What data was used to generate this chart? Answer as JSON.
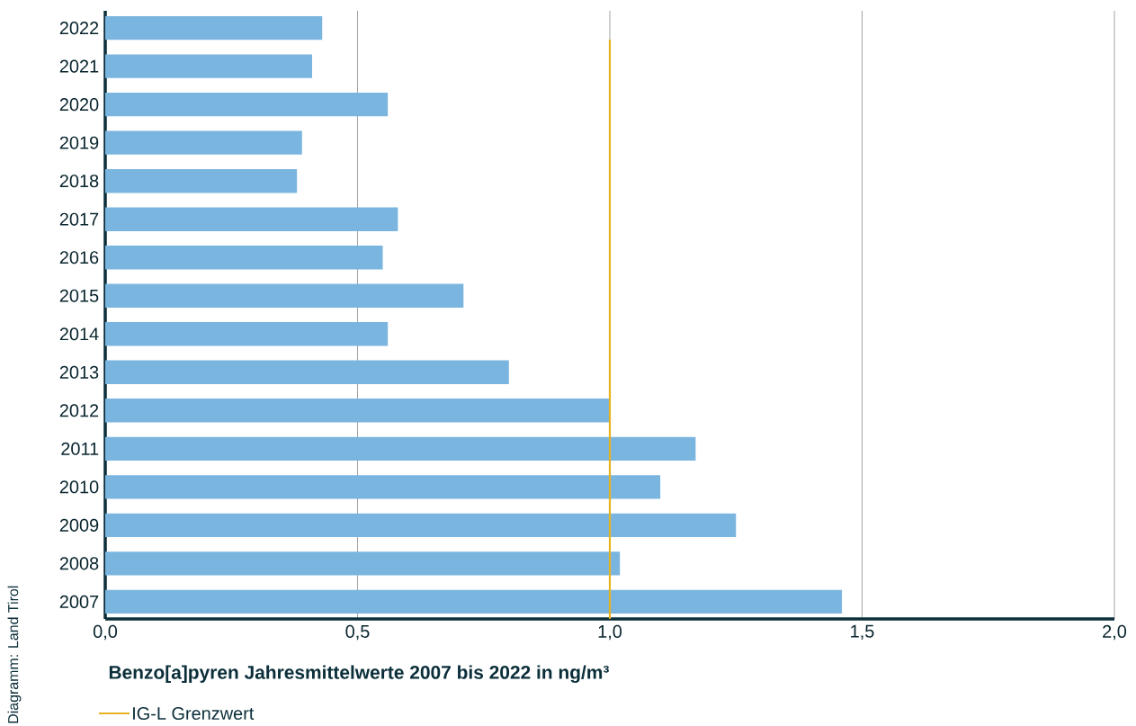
{
  "chart_data": {
    "type": "bar",
    "orientation": "horizontal",
    "xlabel": "Benzo[a]pyren Jahresmittelwerte 2007 bis 2022 in ng/m³",
    "categories": [
      "2022",
      "2021",
      "2020",
      "2019",
      "2018",
      "2017",
      "2016",
      "2015",
      "2014",
      "2013",
      "2012",
      "2011",
      "2010",
      "2009",
      "2008",
      "2007"
    ],
    "values": [
      0.43,
      0.41,
      0.56,
      0.39,
      0.38,
      0.58,
      0.55,
      0.71,
      0.56,
      0.8,
      1.0,
      1.17,
      1.1,
      1.25,
      1.02,
      1.46
    ],
    "color": "#7ab5e0",
    "xlim": [
      0,
      2
    ],
    "xticks": [
      {
        "value": 0,
        "label": "0,0"
      },
      {
        "value": 0.5,
        "label": "0,5"
      },
      {
        "value": 1,
        "label": "1,0"
      },
      {
        "value": 1.5,
        "label": "1,5"
      },
      {
        "value": 2,
        "label": "2,0"
      }
    ],
    "grid": "x",
    "ref_lines": [
      {
        "axis": "x",
        "value": 1,
        "label": "IG-L Grenzwert",
        "color": "#e6b31e"
      }
    ],
    "legend": "bottom",
    "annotations": [
      "Diagramm: Land Tirol"
    ]
  }
}
